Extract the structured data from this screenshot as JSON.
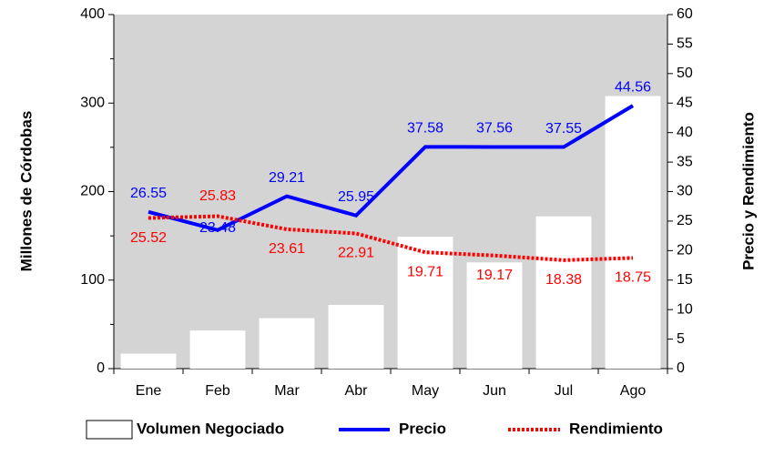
{
  "chart_data": {
    "type": "combo",
    "categories": [
      "Ene",
      "Feb",
      "Mar",
      "Abr",
      "May",
      "Jun",
      "Jul",
      "Ago"
    ],
    "ylabel": "Millones de Córdobas",
    "y2label": "Precio y Rendimiento",
    "ylim": [
      0,
      400
    ],
    "yticks": [
      0,
      100,
      200,
      300,
      400
    ],
    "y2lim": [
      0,
      60
    ],
    "y2ticks": [
      0,
      5,
      10,
      15,
      20,
      25,
      30,
      35,
      40,
      45,
      50,
      55,
      60
    ],
    "series": [
      {
        "name": "Volumen Negociado",
        "type": "bar",
        "color": "#ffffff",
        "axis": "y",
        "values": [
          17,
          43,
          57,
          72,
          149,
          120,
          172,
          308
        ]
      },
      {
        "name": "Precio",
        "type": "line",
        "color": "#0000ff",
        "axis": "y2",
        "values": [
          26.55,
          23.48,
          29.21,
          25.95,
          37.58,
          37.56,
          37.55,
          44.56
        ]
      },
      {
        "name": "Rendimiento",
        "type": "dotted",
        "color": "#ff0000",
        "axis": "y2",
        "values": [
          25.52,
          25.83,
          23.61,
          22.91,
          19.71,
          19.17,
          18.38,
          18.75
        ]
      }
    ]
  }
}
